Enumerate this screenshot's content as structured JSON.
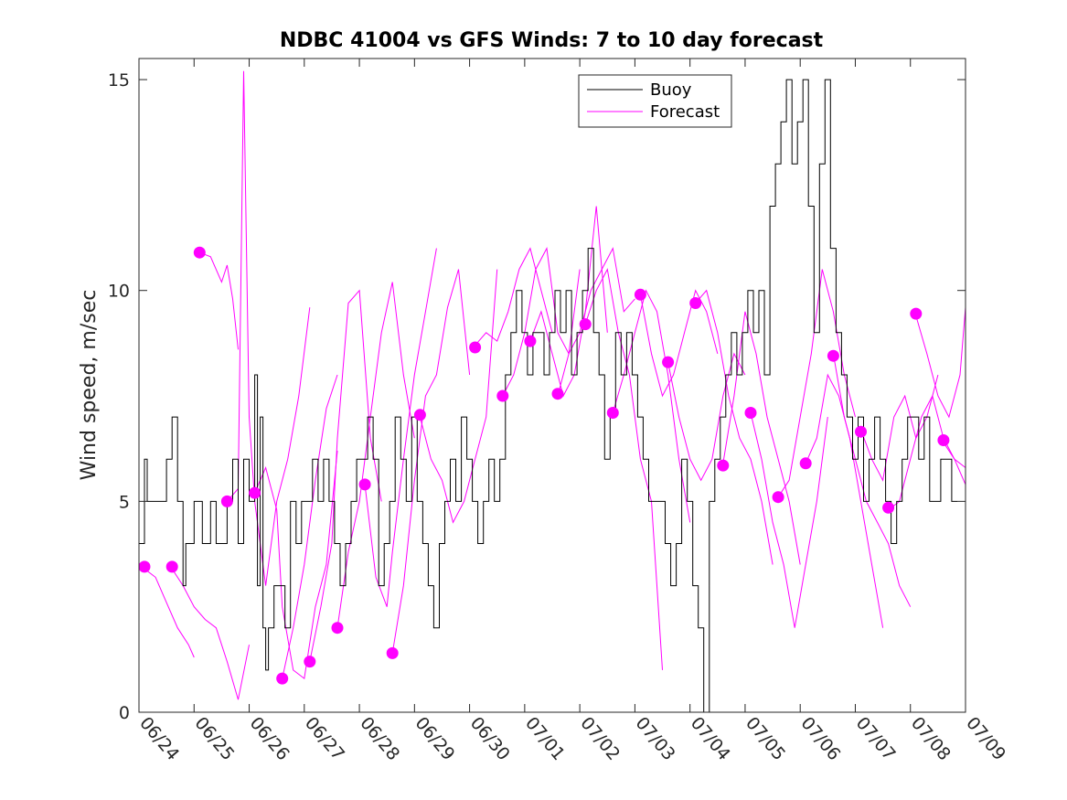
{
  "chart_data": {
    "type": "line",
    "title": "NDBC 41004 vs GFS Winds: 7 to 10 day forecast",
    "xlabel": "",
    "ylabel": "Wind speed, m/sec",
    "xlim": [
      0,
      15
    ],
    "ylim": [
      0,
      15.5
    ],
    "yticks": [
      0,
      5,
      10,
      15
    ],
    "xtick_positions": [
      0,
      1,
      2,
      3,
      4,
      5,
      6,
      7,
      8,
      9,
      10,
      11,
      12,
      13,
      14,
      15
    ],
    "xtick_labels": [
      "06/24",
      "06/25",
      "06/26",
      "06/27",
      "06/28",
      "06/29",
      "06/30",
      "07/01",
      "07/02",
      "07/03",
      "07/04",
      "07/05",
      "07/06",
      "07/07",
      "07/08",
      "07/09"
    ],
    "legend": {
      "position": "top-center",
      "entries": [
        "Buoy",
        "Forecast"
      ]
    },
    "colors": {
      "buoy": "#000000",
      "forecast": "#ff00ff"
    },
    "series": [
      {
        "name": "Buoy",
        "type": "step",
        "x": [
          0,
          0.1,
          0.15,
          0.3,
          0.35,
          0.5,
          0.6,
          0.7,
          0.8,
          0.85,
          0.9,
          1.0,
          1.1,
          1.15,
          1.3,
          1.4,
          1.5,
          1.6,
          1.7,
          1.8,
          1.9,
          2.0,
          2.1,
          2.15,
          2.2,
          2.25,
          2.3,
          2.35,
          2.45,
          2.55,
          2.65,
          2.75,
          2.85,
          2.95,
          3.05,
          3.15,
          3.25,
          3.35,
          3.45,
          3.55,
          3.65,
          3.75,
          3.85,
          3.95,
          4.05,
          4.15,
          4.25,
          4.35,
          4.45,
          4.55,
          4.65,
          4.75,
          4.85,
          4.95,
          5.05,
          5.15,
          5.25,
          5.35,
          5.45,
          5.55,
          5.65,
          5.75,
          5.85,
          5.95,
          6.05,
          6.15,
          6.25,
          6.35,
          6.45,
          6.55,
          6.65,
          6.75,
          6.85,
          6.95,
          7.05,
          7.15,
          7.25,
          7.35,
          7.45,
          7.55,
          7.65,
          7.75,
          7.85,
          7.95,
          8.05,
          8.15,
          8.25,
          8.35,
          8.45,
          8.55,
          8.65,
          8.75,
          8.85,
          8.95,
          9.05,
          9.15,
          9.25,
          9.35,
          9.45,
          9.55,
          9.65,
          9.75,
          9.85,
          9.95,
          10.05,
          10.15,
          10.25,
          10.35,
          10.45,
          10.55,
          10.65,
          10.75,
          10.85,
          10.95,
          11.05,
          11.15,
          11.25,
          11.35,
          11.45,
          11.55,
          11.65,
          11.75,
          11.85,
          11.95,
          12.05,
          12.15,
          12.25,
          12.35,
          12.45,
          12.55,
          12.65,
          12.75,
          12.85,
          12.95,
          13.05,
          13.15,
          13.25,
          13.35,
          13.45,
          13.55,
          13.65,
          13.75,
          13.85,
          13.95,
          14.05,
          14.15,
          14.25,
          14.35,
          14.45,
          14.55,
          14.65,
          14.75
        ],
        "y": [
          4,
          6,
          5,
          5,
          5,
          6,
          7,
          5,
          3,
          4,
          4,
          5,
          5,
          4,
          5,
          4,
          4,
          5,
          6,
          4,
          6,
          5,
          8,
          3,
          7,
          2,
          1,
          2,
          3,
          3,
          2,
          5,
          4,
          5,
          5,
          6,
          5,
          6,
          5,
          4,
          3,
          4,
          5,
          6,
          6,
          7,
          6,
          3,
          4,
          5,
          7,
          6,
          5,
          7,
          5,
          4,
          3,
          2,
          4,
          5,
          6,
          5,
          7,
          6,
          5,
          4,
          5,
          6,
          5,
          6,
          8,
          9,
          10,
          9,
          8,
          9,
          9,
          8,
          9,
          10,
          9,
          10,
          8,
          9,
          10,
          11,
          9,
          8,
          6,
          7,
          9,
          8,
          9,
          8,
          7,
          6,
          5,
          5,
          5,
          4,
          3,
          4,
          6,
          5,
          3,
          2,
          0,
          5,
          6,
          7,
          8,
          9,
          8,
          9,
          10,
          9,
          10,
          8,
          12,
          13,
          14,
          15,
          13,
          14,
          15,
          12,
          9,
          13,
          15,
          11,
          9,
          8,
          7,
          6,
          7,
          5,
          6,
          7,
          6,
          5,
          4,
          5,
          6,
          7,
          7,
          6,
          7,
          5,
          5,
          6,
          6,
          5
        ]
      },
      {
        "name": "Forecast",
        "type": "ensemble",
        "runs": [
          {
            "x": [
              0.1,
              0.3,
              0.5,
              0.7,
              0.9,
              1.0
            ],
            "y": [
              3.4,
              3.2,
              2.6,
              2.0,
              1.6,
              1.3
            ]
          },
          {
            "x": [
              0.6,
              0.8,
              1.0,
              1.2,
              1.4,
              1.6,
              1.8,
              2.0
            ],
            "y": [
              3.4,
              3.0,
              2.5,
              2.2,
              2.0,
              1.2,
              0.3,
              1.6
            ]
          },
          {
            "x": [
              1.1,
              1.3,
              1.5,
              1.6,
              1.7,
              1.8
            ],
            "y": [
              10.9,
              10.8,
              10.2,
              10.6,
              9.8,
              8.6
            ]
          },
          {
            "x": [
              1.6,
              1.8,
              1.9,
              2.0,
              2.1,
              2.2,
              2.3,
              2.5,
              2.7,
              2.9,
              3.1
            ],
            "y": [
              5.0,
              5.3,
              15.2,
              7.0,
              5.0,
              4.0,
              3.0,
              5.0,
              6.0,
              7.5,
              9.6
            ]
          },
          {
            "x": [
              2.1,
              2.3,
              2.5,
              2.6,
              2.8,
              3.0,
              3.2,
              3.4,
              3.6
            ],
            "y": [
              5.2,
              5.8,
              4.8,
              2.5,
              1.0,
              0.8,
              2.5,
              3.5,
              6.2
            ]
          },
          {
            "x": [
              2.6,
              2.8,
              3.0,
              3.2,
              3.4,
              3.6
            ],
            "y": [
              0.8,
              2.0,
              3.5,
              5.5,
              7.2,
              8.0
            ]
          },
          {
            "x": [
              3.1,
              3.3,
              3.5,
              3.6,
              3.8,
              4.0,
              4.2,
              4.4
            ],
            "y": [
              1.2,
              2.5,
              4.0,
              6.5,
              9.7,
              10.0,
              6.5,
              5.0
            ]
          },
          {
            "x": [
              3.6,
              3.8,
              4.0,
              4.2,
              4.4,
              4.6,
              4.8,
              5.0
            ],
            "y": [
              2.0,
              3.8,
              5.0,
              7.0,
              9.0,
              10.2,
              8.0,
              6.5
            ]
          },
          {
            "x": [
              4.1,
              4.3,
              4.5,
              4.6,
              4.8,
              5.0,
              5.2,
              5.4
            ],
            "y": [
              5.4,
              3.2,
              2.5,
              3.8,
              6.0,
              8.0,
              9.5,
              11.0
            ]
          },
          {
            "x": [
              4.6,
              4.8,
              5.0,
              5.2,
              5.4,
              5.6,
              5.8,
              6.0
            ],
            "y": [
              1.4,
              3.0,
              5.5,
              7.5,
              8.0,
              9.6,
              10.5,
              8.0
            ]
          },
          {
            "x": [
              5.1,
              5.3,
              5.5,
              5.7,
              5.9,
              6.1,
              6.3,
              6.5
            ],
            "y": [
              7.0,
              6.0,
              5.5,
              4.5,
              5.0,
              6.0,
              7.0,
              10.5
            ]
          },
          {
            "x": [
              6.1,
              6.3,
              6.5,
              6.7,
              6.9,
              7.1,
              7.3,
              7.5
            ],
            "y": [
              8.7,
              9.0,
              8.8,
              9.5,
              10.5,
              11.0,
              10.0,
              9.0
            ]
          },
          {
            "x": [
              6.6,
              6.8,
              7.0,
              7.2,
              7.4,
              7.6,
              7.8,
              8.0
            ],
            "y": [
              7.5,
              8.0,
              9.0,
              10.5,
              11.0,
              9.0,
              8.5,
              10.5
            ]
          },
          {
            "x": [
              7.1,
              7.3,
              7.5,
              7.7,
              7.9,
              8.1,
              8.3,
              8.5
            ],
            "y": [
              8.8,
              9.5,
              8.5,
              7.5,
              8.0,
              9.5,
              12.0,
              9.0
            ]
          },
          {
            "x": [
              7.6,
              7.8,
              8.0,
              8.2,
              8.4,
              8.6,
              8.8,
              9.0
            ],
            "y": [
              7.5,
              8.5,
              9.0,
              10.0,
              10.5,
              11.0,
              9.5,
              9.8
            ]
          },
          {
            "x": [
              8.1,
              8.3,
              8.5,
              8.7,
              8.9,
              9.1,
              9.3,
              9.5
            ],
            "y": [
              9.2,
              10.0,
              10.5,
              9.0,
              8.0,
              6.0,
              5.0,
              1.0
            ]
          },
          {
            "x": [
              8.6,
              8.8,
              9.0,
              9.2,
              9.4,
              9.6,
              9.8,
              10.0
            ],
            "y": [
              7.1,
              8.0,
              9.0,
              10.0,
              9.5,
              8.0,
              6.0,
              4.5
            ]
          },
          {
            "x": [
              9.1,
              9.3,
              9.5,
              9.7,
              9.9,
              10.1,
              10.3,
              10.5
            ],
            "y": [
              9.9,
              8.5,
              7.5,
              8.0,
              9.0,
              10.0,
              9.5,
              8.5
            ]
          },
          {
            "x": [
              9.6,
              9.8,
              10.0,
              10.2,
              10.4,
              10.6,
              10.8,
              11.0
            ],
            "y": [
              8.3,
              7.0,
              6.0,
              5.5,
              6.0,
              7.5,
              8.5,
              8.0
            ]
          },
          {
            "x": [
              10.1,
              10.3,
              10.5,
              10.7,
              10.9,
              11.1,
              11.3,
              11.5
            ],
            "y": [
              9.7,
              10.0,
              9.0,
              7.5,
              6.5,
              6.0,
              5.0,
              3.5
            ]
          },
          {
            "x": [
              10.6,
              10.8,
              11.0,
              11.2,
              11.4,
              11.6,
              11.8,
              12.0
            ],
            "y": [
              5.9,
              7.5,
              9.5,
              8.5,
              7.0,
              6.0,
              5.0,
              3.5
            ]
          },
          {
            "x": [
              11.1,
              11.3,
              11.5,
              11.7,
              11.9,
              12.1,
              12.3,
              12.5
            ],
            "y": [
              7.1,
              6.0,
              4.5,
              3.5,
              2.0,
              3.5,
              5.0,
              7.0
            ]
          },
          {
            "x": [
              11.6,
              11.8,
              12.0,
              12.2,
              12.4,
              12.6,
              12.8,
              13.0
            ],
            "y": [
              5.1,
              5.5,
              7.0,
              8.5,
              10.5,
              9.5,
              8.0,
              7.0
            ]
          },
          {
            "x": [
              12.1,
              12.3,
              12.5,
              12.7,
              12.9,
              13.1,
              13.3,
              13.5
            ],
            "y": [
              5.9,
              6.5,
              8.0,
              7.5,
              6.5,
              5.0,
              3.5,
              2.0
            ]
          },
          {
            "x": [
              12.6,
              12.8,
              13.0,
              13.2,
              13.4,
              13.6,
              13.8,
              14.0
            ],
            "y": [
              8.5,
              7.0,
              6.0,
              5.0,
              4.5,
              4.0,
              3.0,
              2.5
            ]
          },
          {
            "x": [
              13.1,
              13.3,
              13.5,
              13.7,
              13.9,
              14.1,
              14.3,
              14.5
            ],
            "y": [
              6.7,
              6.0,
              5.5,
              7.0,
              7.5,
              6.5,
              7.0,
              8.0
            ]
          },
          {
            "x": [
              13.6,
              13.8,
              14.0,
              14.2,
              14.4,
              14.6,
              14.8,
              15.0
            ],
            "y": [
              4.8,
              5.0,
              6.0,
              7.0,
              7.5,
              6.5,
              6.0,
              5.8
            ]
          },
          {
            "x": [
              14.1,
              14.3,
              14.5,
              14.7,
              14.9,
              15.0
            ],
            "y": [
              9.4,
              8.5,
              7.5,
              7.0,
              8.0,
              9.6
            ]
          },
          {
            "x": [
              14.6,
              14.8,
              15.0
            ],
            "y": [
              6.4,
              6.0,
              5.4
            ]
          }
        ],
        "markers": {
          "x": [
            0.1,
            0.6,
            1.1,
            1.6,
            2.1,
            2.6,
            3.1,
            3.6,
            4.1,
            4.6,
            5.1,
            6.1,
            6.6,
            7.1,
            7.6,
            8.1,
            8.6,
            9.1,
            9.6,
            10.1,
            10.6,
            11.1,
            11.6,
            12.1,
            12.6,
            13.1,
            13.6,
            14.1,
            14.6
          ],
          "y": [
            3.45,
            3.45,
            10.9,
            5.0,
            5.2,
            0.8,
            1.2,
            2.0,
            5.4,
            1.4,
            7.05,
            8.65,
            7.5,
            8.8,
            7.55,
            9.2,
            7.1,
            9.9,
            8.3,
            9.7,
            5.85,
            7.1,
            5.1,
            5.9,
            8.45,
            6.65,
            4.85,
            9.45,
            6.45
          ]
        }
      }
    ]
  }
}
